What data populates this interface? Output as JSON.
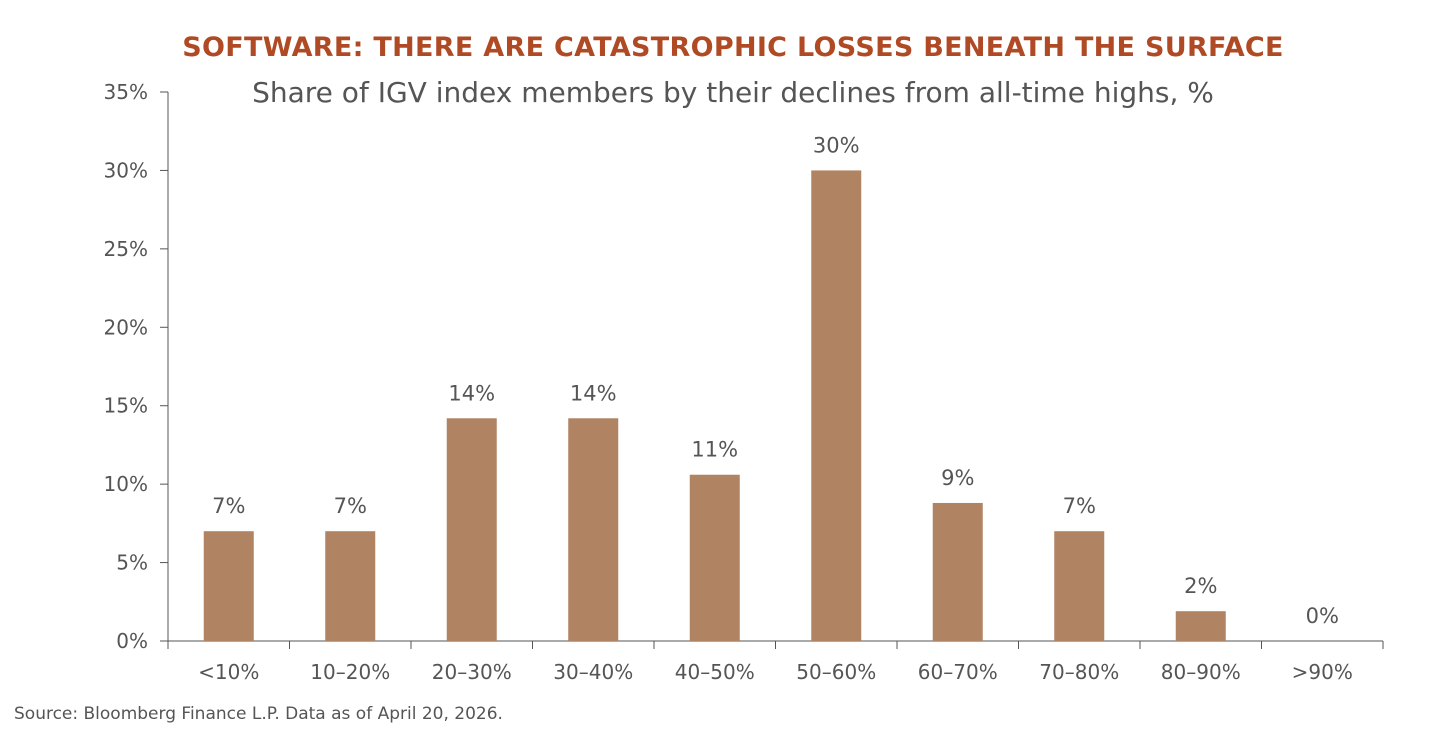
{
  "chart_data": {
    "type": "bar",
    "title": "SOFTWARE: THERE ARE CATASTROPHIC LOSSES BENEATH THE SURFACE",
    "subtitle": "Share of IGV index members by their declines from all-time highs, %",
    "xlabel": "",
    "ylabel": "",
    "categories": [
      "<10%",
      "10–20%",
      "20–30%",
      "30–40%",
      "40–50%",
      "50–60%",
      "60–70%",
      "70–80%",
      "80–90%",
      ">90%"
    ],
    "values": [
      7,
      7,
      14.2,
      14.2,
      10.6,
      30,
      8.8,
      7,
      1.9,
      0
    ],
    "data_labels": [
      "7%",
      "7%",
      "14%",
      "14%",
      "11%",
      "30%",
      "9%",
      "7%",
      "2%",
      "0%"
    ],
    "ylim": [
      0,
      35
    ],
    "yticks": [
      0,
      5,
      10,
      15,
      20,
      25,
      30,
      35
    ],
    "ytick_labels": [
      "0%",
      "5%",
      "10%",
      "15%",
      "20%",
      "25%",
      "30%",
      "35%"
    ],
    "grid": false,
    "bar_color": "#b08462",
    "title_color": "#b04a25"
  },
  "source": "Source: Bloomberg Finance L.P. Data as of April 20, 2026."
}
